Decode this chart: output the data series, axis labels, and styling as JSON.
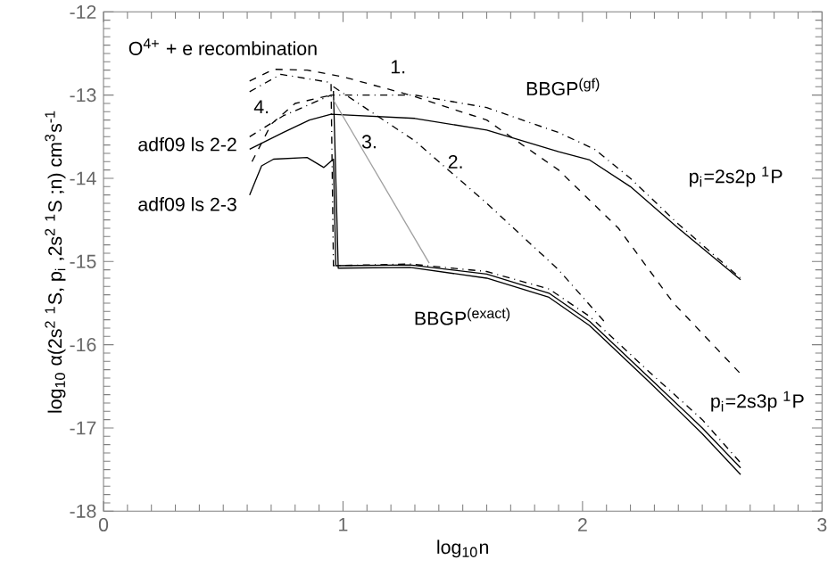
{
  "chart_data": {
    "type": "line",
    "title": "O$^{4+}$ + e recombination",
    "xlabel": "log$_{10}$n",
    "ylabel": "log$_{10}$ α(2s$^{2}$ $^{1}$S, p$_{i}$ ,2s$^{2}$ $^{1}$S ;n)  cm$^{3}$s$^{-1}$",
    "xlim": [
      0,
      3
    ],
    "ylim": [
      -18,
      -12
    ],
    "xticks": [
      0,
      1,
      2,
      3
    ],
    "yticks": [
      -18,
      -17,
      -16,
      -15,
      -14,
      -13,
      -12
    ],
    "series": [
      {
        "color": "#000000",
        "line_style": "solid",
        "x": [
          0.61,
          0.75,
          0.86,
          0.95,
          1.3,
          1.6,
          1.9,
          2.03,
          2.2,
          2.4,
          2.66
        ],
        "values": [
          -13.65,
          -13.45,
          -13.3,
          -13.23,
          -13.28,
          -13.42,
          -13.68,
          -13.78,
          -14.1,
          -14.6,
          -15.22
        ]
      },
      {
        "color": "#000000",
        "line_style": "dashdot",
        "x": [
          0.61,
          0.75,
          0.95,
          1.3,
          1.6,
          1.9,
          2.05,
          2.2,
          2.4,
          2.66
        ],
        "values": [
          -13.5,
          -13.25,
          -13.0,
          -13.0,
          -13.15,
          -13.45,
          -13.65,
          -14.0,
          -14.55,
          -15.2
        ]
      },
      {
        "color": "#000000",
        "line_style": "dashed",
        "x": [
          0.62,
          0.7,
          0.8,
          0.95
        ],
        "values": [
          -13.8,
          -13.35,
          -13.1,
          -13.0
        ]
      },
      {
        "color": "#000000",
        "line_style": "dashed",
        "x": [
          0.61,
          0.71,
          0.85,
          1.0,
          1.28,
          1.6,
          1.9,
          2.15,
          2.38,
          2.66
        ],
        "values": [
          -12.83,
          -12.69,
          -12.7,
          -12.78,
          -13.0,
          -13.3,
          -13.9,
          -14.6,
          -15.5,
          -16.35
        ]
      },
      {
        "color": "#000000",
        "line_style": "dashdot",
        "x": [
          0.61,
          0.74,
          0.95,
          0.96,
          1.28,
          1.6,
          1.86,
          2.03,
          2.28,
          2.5,
          2.66
        ],
        "values": [
          -12.96,
          -12.75,
          -12.85,
          -15.05,
          -15.03,
          -15.12,
          -15.33,
          -15.66,
          -16.33,
          -16.9,
          -17.42
        ]
      },
      {
        "color": "#000000",
        "line_style": "dashdot",
        "x": [
          0.96,
          1.3,
          1.6,
          1.9,
          2.1
        ],
        "values": [
          -12.9,
          -13.55,
          -14.3,
          -15.1,
          -15.75
        ]
      },
      {
        "color": "#000000",
        "line_style": "solid",
        "x": [
          0.61,
          0.66,
          0.71,
          0.85,
          0.92,
          0.96,
          0.97,
          1.28,
          1.6,
          1.86,
          2.03,
          2.28,
          2.5,
          2.66
        ],
        "values": [
          -14.2,
          -13.85,
          -13.77,
          -13.75,
          -13.87,
          -13.77,
          -15.05,
          -15.04,
          -15.15,
          -15.38,
          -15.72,
          -16.4,
          -17.0,
          -17.48
        ]
      },
      {
        "color": "#000000",
        "line_style": "solid",
        "x": [
          0.96,
          0.98,
          1.28,
          1.6,
          1.86,
          2.03,
          2.28,
          2.5,
          2.66
        ],
        "values": [
          -12.95,
          -15.08,
          -15.07,
          -15.2,
          -15.43,
          -15.77,
          -16.45,
          -17.07,
          -17.56
        ]
      },
      {
        "color": "#a0a0a0",
        "line_style": "solid",
        "x": [
          0.96,
          1.36
        ],
        "values": [
          -13.06,
          -15.02
        ]
      }
    ],
    "annotations": [
      "1.",
      "2.",
      "3.",
      "4.",
      "BBGP$^{(gf)}$",
      "BBGP$^{(exact)}$",
      "p$_{i}$=2s2p $^{1}$P",
      "p$_{i}$=2s3p $^{1}$P",
      "adf09 ls 2-2",
      "adf09 ls 2-3"
    ]
  }
}
